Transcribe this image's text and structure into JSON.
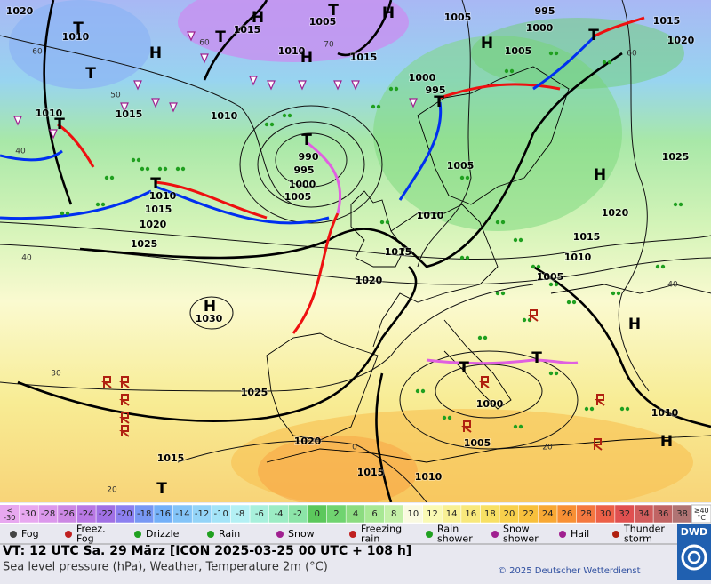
{
  "map": {
    "pressure_labels": [
      "1020",
      "1010",
      "1015",
      "1005",
      "1010",
      "1015",
      "1005",
      "995",
      "1000",
      "1005",
      "1015",
      "1020",
      "1010",
      "1015",
      "1010",
      "1000",
      "995",
      "990",
      "995",
      "1000",
      "1005",
      "1010",
      "1015",
      "1020",
      "1025",
      "1005",
      "1025",
      "1010",
      "1020",
      "1015",
      "1010",
      "1015",
      "1020",
      "1005",
      "1030",
      "1025",
      "1000",
      "1005",
      "1010",
      "1020",
      "1015",
      "1015",
      "1010"
    ],
    "centers": [
      "H",
      "T",
      "H",
      "H",
      "H",
      "T",
      "T",
      "T",
      "H",
      "T",
      "T",
      "T",
      "T",
      "T",
      "H",
      "H",
      "H",
      "T",
      "T",
      "H",
      "T"
    ],
    "temperature_labels": [
      "40",
      "40",
      "30",
      "20",
      "50",
      "60",
      "70",
      "60",
      "40",
      "60",
      "0",
      "20"
    ]
  },
  "scale": {
    "low_label": "<\n-30",
    "values": [
      -30,
      -28,
      -26,
      -24,
      -22,
      -20,
      -18,
      -16,
      -14,
      -12,
      -10,
      -8,
      -6,
      -4,
      -2,
      0,
      2,
      4,
      6,
      8,
      10,
      12,
      14,
      16,
      18,
      20,
      22,
      24,
      26,
      28,
      30,
      32,
      34,
      36,
      38
    ],
    "colors": [
      "#e8a8f0",
      "#dc98ec",
      "#cc88e4",
      "#b878e4",
      "#a070e4",
      "#8c80f0",
      "#7898f4",
      "#74b0f8",
      "#84c4f8",
      "#94d4f8",
      "#a4e4f8",
      "#b4f0f4",
      "#a8f0dc",
      "#9cecc4",
      "#8ce4a8",
      "#5cc85c",
      "#70d470",
      "#8cdc80",
      "#a8e894",
      "#c4f0a8",
      "#fafae0",
      "#fafab4",
      "#f8f094",
      "#f8e87c",
      "#f8e064",
      "#f8d04c",
      "#f8c03c",
      "#f8a834",
      "#f89034",
      "#f47840",
      "#ec6048",
      "#e05050",
      "#d05c5c",
      "#c06464",
      "#b07474"
    ],
    "high_label": "≥40\n°C"
  },
  "legend": [
    "Fog",
    "Freez.\nFog",
    "Drizzle",
    "Rain",
    "Snow",
    "Freezing\nrain",
    "Rain\nshower",
    "Snow\nshower",
    "Hail",
    "Thunder\nstorm"
  ],
  "footer": {
    "valid_time": "VT: 12 UTC Sa.  29 März [ICON 2025-03-25  00 UTC + 108 h]",
    "description": "Sea level pressure (hPa), Weather, Temperature 2m (°C)",
    "copyright": "© 2025 Deutscher Wetterdienst",
    "logo": "DWD"
  }
}
